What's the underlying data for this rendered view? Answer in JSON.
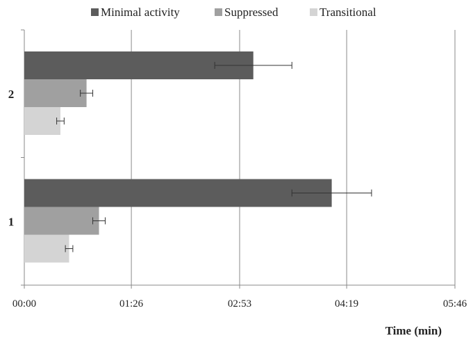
{
  "chart_data": {
    "type": "bar",
    "orientation": "horizontal",
    "title": "",
    "xlabel": "Time (min)",
    "ylabel": "",
    "xlim_seconds": [
      0,
      346
    ],
    "x_ticks": [
      {
        "label": "00:00",
        "value": 0
      },
      {
        "label": "01:26",
        "value": 86
      },
      {
        "label": "02:53",
        "value": 173
      },
      {
        "label": "04:19",
        "value": 259
      },
      {
        "label": "05:46",
        "value": 346
      }
    ],
    "categories": [
      "2",
      "1"
    ],
    "series": [
      {
        "name": "Minimal activity",
        "color": "#5c5c5c",
        "values": [
          184,
          247
        ],
        "errors": [
          31,
          32
        ]
      },
      {
        "name": "Suppressed",
        "color": "#a0a0a0",
        "values": [
          50,
          60
        ],
        "errors": [
          5,
          5
        ]
      },
      {
        "name": "Transitional",
        "color": "#d4d4d4",
        "values": [
          29,
          36
        ],
        "errors": [
          3,
          3
        ]
      }
    ],
    "grid": "vertical",
    "legend_position": "top"
  }
}
